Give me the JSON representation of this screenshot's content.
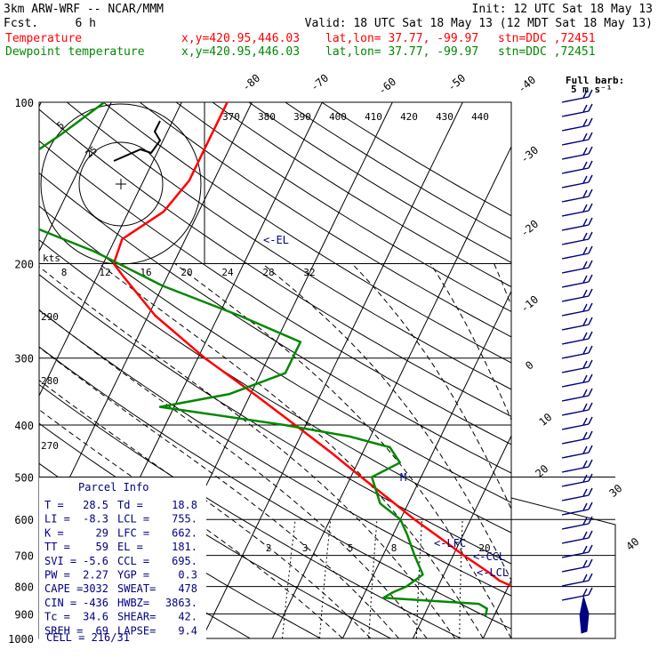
{
  "header": {
    "model": "3km ARW-WRF -- NCAR/MMM",
    "init": "Init: 12 UTC Sat 18 May 13",
    "fcst_label": "Fcst.",
    "fcst_value": "6 h",
    "valid": "Valid: 18 UTC Sat 18 May 13 (12 MDT Sat 18 May 13)",
    "temp_line": {
      "name": "Temperature",
      "xy": "x,y=420.95,446.03",
      "latlon": "lat,lon= 37.77, -99.97",
      "stn": "stn=DDC ,72451"
    },
    "dew_line": {
      "name": "Dewpoint temperature",
      "xy": "x,y=420.95,446.03",
      "latlon": "lat,lon= 37.77, -99.97",
      "stn": "stn=DDC ,72451"
    }
  },
  "colors": {
    "temperature": "#ff0000",
    "dewpoint": "#008800",
    "annotation": "#000080",
    "grid": "#000000"
  },
  "barb_legend": {
    "line1": "Full barb:",
    "line2": "5 m s⁻¹"
  },
  "hodograph": {
    "ring_labels": [
      "5",
      "25"
    ],
    "speed_axis_label": "kts",
    "speed_ticks": [
      "8",
      "12",
      "16",
      "20",
      "24",
      "28",
      "32"
    ]
  },
  "isotherm_labels": [
    "-80",
    "-70",
    "-60",
    "-50",
    "-40",
    "-30",
    "-20",
    "-10",
    "0",
    "10",
    "20",
    "30",
    "40"
  ],
  "theta_labels": [
    "370",
    "380",
    "390",
    "400",
    "410",
    "420",
    "430",
    "440"
  ],
  "theta_left_labels": [
    "290",
    "280",
    "270"
  ],
  "mixing_ratio_labels": [
    "2",
    "3",
    "5",
    "8",
    "20"
  ],
  "level_markers": {
    "el": "<-EL",
    "lfc": "<-LFC",
    "ccl": "<-CCL",
    "lcl": "<-LCL",
    "mark": "M"
  },
  "parcel_info": {
    "title": "Parcel Info",
    "rows": [
      [
        "T  =",
        "28.5",
        "Td =",
        "18.8"
      ],
      [
        "LI =",
        "-8.3",
        "LCL =",
        "755."
      ],
      [
        "K  =",
        "29",
        "LFC =",
        "662."
      ],
      [
        "TT =",
        "59",
        "EL =",
        "181."
      ],
      [
        "SVI =",
        "-5.6",
        "CCL =",
        "695."
      ],
      [
        "PW =",
        "2.27",
        "YGP =",
        "0.3"
      ],
      [
        "CAPE =",
        "3032",
        "SWEAT=",
        "478"
      ],
      [
        "CIN =",
        "-436",
        "HWBZ=",
        "3863."
      ],
      [
        "Tc =",
        "34.6",
        "SHEAR=",
        "42."
      ],
      [
        "SREH =",
        "69",
        "LAPSE=",
        "9.4"
      ]
    ],
    "cell": "CELL = 216/31"
  },
  "chart_data": {
    "type": "line",
    "title": "",
    "xlabel": "",
    "ylabel": "",
    "y_axis": "pressure (hPa), log scale, inverted",
    "pressure_ticks": [
      100,
      200,
      300,
      400,
      500,
      600,
      700,
      800,
      900,
      1000
    ],
    "ylim": [
      1000,
      100
    ],
    "series": [
      {
        "name": "Temperature",
        "unit": "degC",
        "p": [
          908,
          900,
          880,
          862,
          840,
          820,
          800,
          780,
          755,
          700,
          650,
          600,
          550,
          500,
          450,
          400,
          350,
          300,
          250,
          210,
          200,
          180,
          160,
          140,
          120,
          100
        ],
        "t": [
          28.5,
          27.5,
          25.0,
          22.8,
          24.6,
          22.5,
          20.6,
          18.3,
          16.4,
          11.5,
          7.0,
          2.0,
          -3.0,
          -8.5,
          -14.5,
          -21.5,
          -29.5,
          -39.0,
          -49.0,
          -56.5,
          -58.5,
          -59.0,
          -55.0,
          -53.5,
          -53.5,
          -53.5
        ]
      },
      {
        "name": "Dewpoint temperature",
        "unit": "degC",
        "p": [
          908,
          880,
          862,
          840,
          820,
          800,
          760,
          700,
          640,
          600,
          560,
          500,
          470,
          440,
          420,
          400,
          370,
          350,
          320,
          280,
          250,
          220,
          190,
          170,
          155,
          140,
          130,
          115,
          100
        ],
        "td": [
          18.8,
          18.5,
          17.0,
          3.0,
          4.0,
          5.5,
          7.0,
          4.5,
          2.0,
          0.0,
          -4.0,
          -7.0,
          -4.0,
          -6.5,
          -13.0,
          -23.0,
          -42.0,
          -33.0,
          -26.5,
          -26.5,
          -37.0,
          -50.0,
          -62.0,
          -73.0,
          -79.0,
          -80.5,
          -79.0,
          -75.0,
          -71.0
        ]
      }
    ],
    "grid": true,
    "legend": "top-left"
  }
}
